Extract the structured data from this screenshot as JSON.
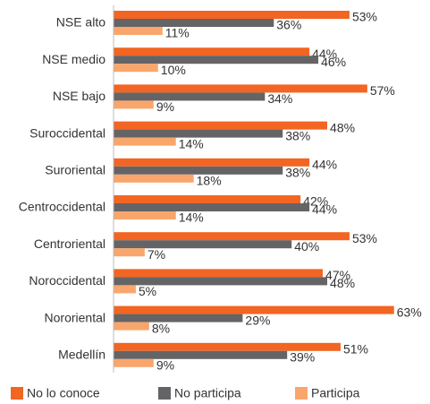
{
  "chart_data": {
    "type": "bar",
    "orientation": "horizontal",
    "categories": [
      "NSE alto",
      "NSE medio",
      "NSE bajo",
      "Suroccidental",
      "Suroriental",
      "Centroccidental",
      "Centroriental",
      "Noroccidental",
      "Nororiental",
      "Medellín"
    ],
    "series": [
      {
        "name": "No lo conoce",
        "color": "#f26522",
        "values": [
          53,
          44,
          57,
          48,
          44,
          42,
          53,
          47,
          63,
          51
        ],
        "value_labels": [
          "53%",
          "44%",
          "57%",
          "48%",
          "44%",
          "42%",
          "53%",
          "47%",
          "63%",
          "51%"
        ]
      },
      {
        "name": "No participa",
        "color": "#646466",
        "values": [
          36,
          46,
          34,
          38,
          38,
          44,
          40,
          48,
          29,
          39
        ],
        "value_labels": [
          "36%",
          "46%",
          "34%",
          "38%",
          "38%",
          "44%",
          "40%",
          "48%",
          "29%",
          "39%"
        ]
      },
      {
        "name": "Participa",
        "color": "#f9a66c",
        "values": [
          11,
          10,
          9,
          14,
          18,
          14,
          7,
          5,
          8,
          9
        ],
        "value_labels": [
          "11%",
          "10%",
          "9%",
          "14%",
          "18%",
          "14%",
          "7%",
          "5%",
          "8%",
          "9%"
        ]
      }
    ],
    "legend": "bottom"
  }
}
